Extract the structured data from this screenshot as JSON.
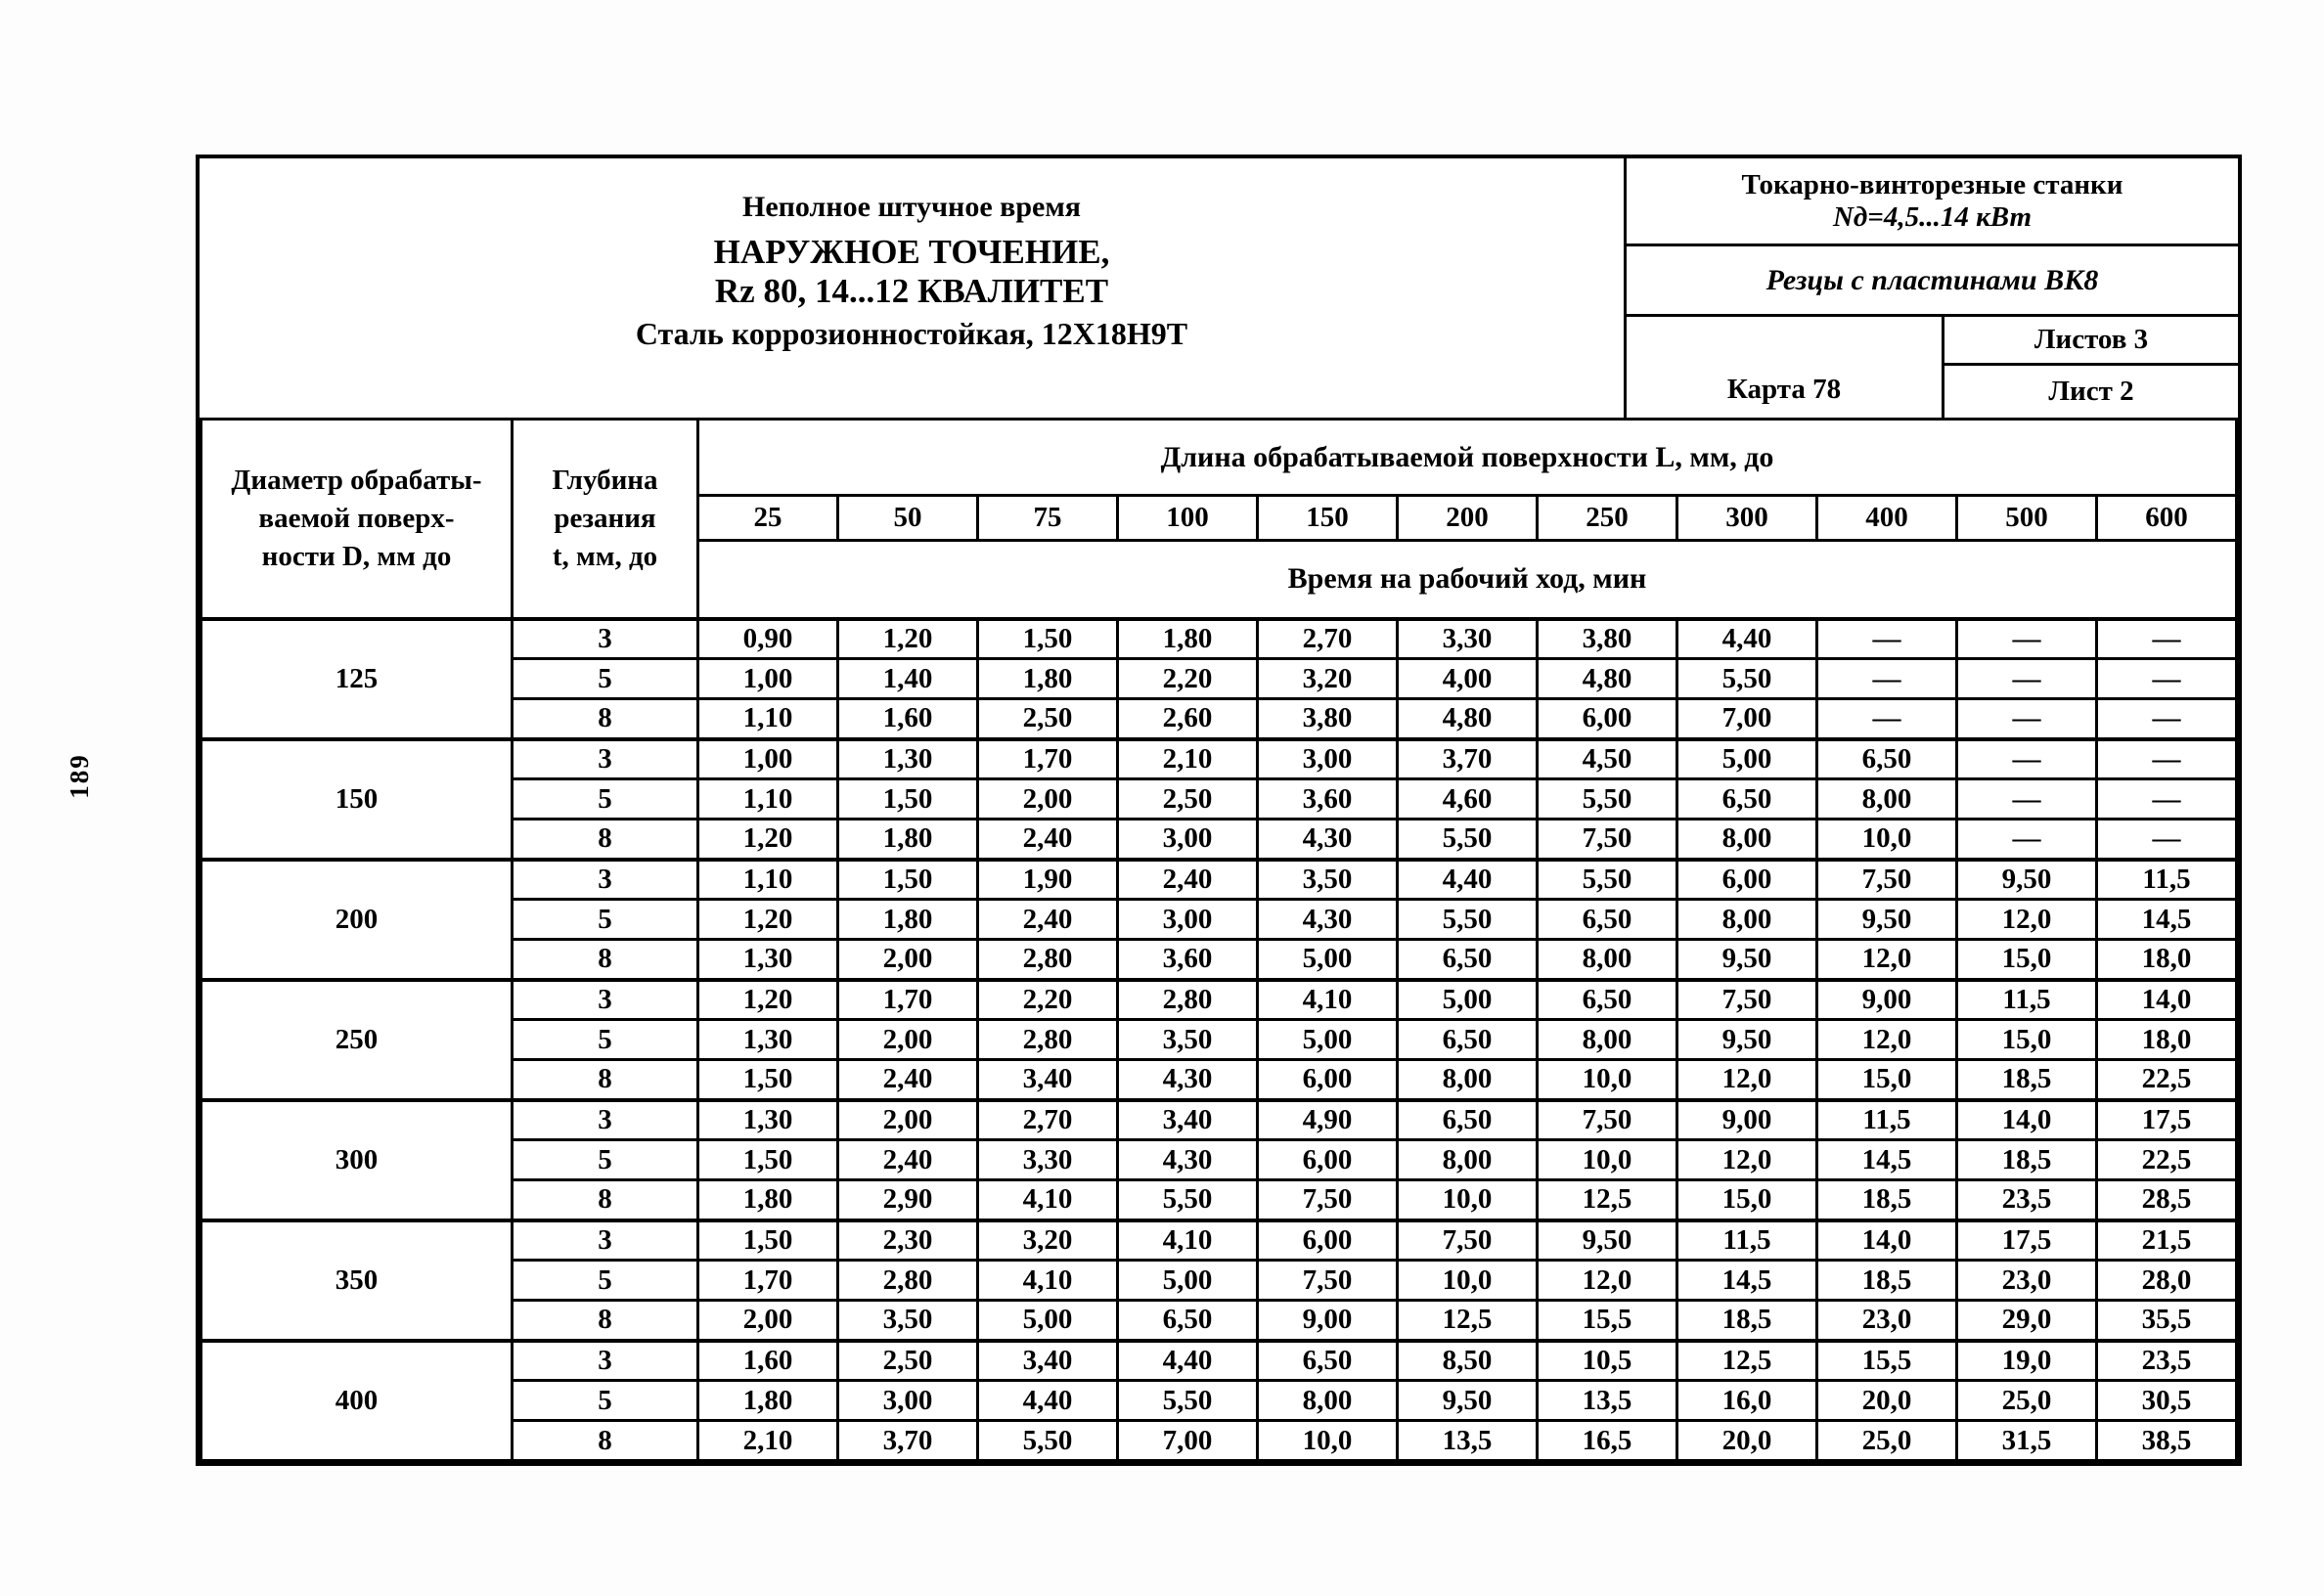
{
  "page_number": "189",
  "header": {
    "subtitle": "Неполное штучное время",
    "title": "НАРУЖНОЕ ТОЧЕНИЕ,",
    "title2": "Rz 80, 14...12 КВАЛИТЕТ",
    "material": "Сталь коррозионностойкая, 12Х18Н9Т",
    "machine": "Токарно-винторезные станки",
    "machine_power": "Nд=4,5...14 кВт",
    "tool": "Резцы с пластинами ВК8",
    "sheets_label": "Листов 3",
    "card_label": "Карта 78",
    "sheet_label": "Лист 2"
  },
  "table": {
    "diameter_header": "Диаметр обрабаты-\nваемой поверх-\nности D, мм до",
    "depth_header": "Глубина\nрезания\nt, мм, до",
    "length_header": "Длина обрабатываемой поверхности L, мм, до",
    "length_columns": [
      "25",
      "50",
      "75",
      "100",
      "150",
      "200",
      "250",
      "300",
      "400",
      "500",
      "600"
    ],
    "time_header": "Время на рабочий ход, мин",
    "groups": [
      {
        "diameter": "125",
        "rows": [
          {
            "depth": "3",
            "values": [
              "0,90",
              "1,20",
              "1,50",
              "1,80",
              "2,70",
              "3,30",
              "3,80",
              "4,40",
              "—",
              "—",
              "—"
            ]
          },
          {
            "depth": "5",
            "values": [
              "1,00",
              "1,40",
              "1,80",
              "2,20",
              "3,20",
              "4,00",
              "4,80",
              "5,50",
              "—",
              "—",
              "—"
            ]
          },
          {
            "depth": "8",
            "values": [
              "1,10",
              "1,60",
              "2,50",
              "2,60",
              "3,80",
              "4,80",
              "6,00",
              "7,00",
              "—",
              "—",
              "—"
            ]
          }
        ]
      },
      {
        "diameter": "150",
        "rows": [
          {
            "depth": "3",
            "values": [
              "1,00",
              "1,30",
              "1,70",
              "2,10",
              "3,00",
              "3,70",
              "4,50",
              "5,00",
              "6,50",
              "—",
              "—"
            ]
          },
          {
            "depth": "5",
            "values": [
              "1,10",
              "1,50",
              "2,00",
              "2,50",
              "3,60",
              "4,60",
              "5,50",
              "6,50",
              "8,00",
              "—",
              "—"
            ]
          },
          {
            "depth": "8",
            "values": [
              "1,20",
              "1,80",
              "2,40",
              "3,00",
              "4,30",
              "5,50",
              "7,50",
              "8,00",
              "10,0",
              "—",
              "—"
            ]
          }
        ]
      },
      {
        "diameter": "200",
        "rows": [
          {
            "depth": "3",
            "values": [
              "1,10",
              "1,50",
              "1,90",
              "2,40",
              "3,50",
              "4,40",
              "5,50",
              "6,00",
              "7,50",
              "9,50",
              "11,5"
            ]
          },
          {
            "depth": "5",
            "values": [
              "1,20",
              "1,80",
              "2,40",
              "3,00",
              "4,30",
              "5,50",
              "6,50",
              "8,00",
              "9,50",
              "12,0",
              "14,5"
            ]
          },
          {
            "depth": "8",
            "values": [
              "1,30",
              "2,00",
              "2,80",
              "3,60",
              "5,00",
              "6,50",
              "8,00",
              "9,50",
              "12,0",
              "15,0",
              "18,0"
            ]
          }
        ]
      },
      {
        "diameter": "250",
        "rows": [
          {
            "depth": "3",
            "values": [
              "1,20",
              "1,70",
              "2,20",
              "2,80",
              "4,10",
              "5,00",
              "6,50",
              "7,50",
              "9,00",
              "11,5",
              "14,0"
            ]
          },
          {
            "depth": "5",
            "values": [
              "1,30",
              "2,00",
              "2,80",
              "3,50",
              "5,00",
              "6,50",
              "8,00",
              "9,50",
              "12,0",
              "15,0",
              "18,0"
            ]
          },
          {
            "depth": "8",
            "values": [
              "1,50",
              "2,40",
              "3,40",
              "4,30",
              "6,00",
              "8,00",
              "10,0",
              "12,0",
              "15,0",
              "18,5",
              "22,5"
            ]
          }
        ]
      },
      {
        "diameter": "300",
        "rows": [
          {
            "depth": "3",
            "values": [
              "1,30",
              "2,00",
              "2,70",
              "3,40",
              "4,90",
              "6,50",
              "7,50",
              "9,00",
              "11,5",
              "14,0",
              "17,5"
            ]
          },
          {
            "depth": "5",
            "values": [
              "1,50",
              "2,40",
              "3,30",
              "4,30",
              "6,00",
              "8,00",
              "10,0",
              "12,0",
              "14,5",
              "18,5",
              "22,5"
            ]
          },
          {
            "depth": "8",
            "values": [
              "1,80",
              "2,90",
              "4,10",
              "5,50",
              "7,50",
              "10,0",
              "12,5",
              "15,0",
              "18,5",
              "23,5",
              "28,5"
            ]
          }
        ]
      },
      {
        "diameter": "350",
        "rows": [
          {
            "depth": "3",
            "values": [
              "1,50",
              "2,30",
              "3,20",
              "4,10",
              "6,00",
              "7,50",
              "9,50",
              "11,5",
              "14,0",
              "17,5",
              "21,5"
            ]
          },
          {
            "depth": "5",
            "values": [
              "1,70",
              "2,80",
              "4,10",
              "5,00",
              "7,50",
              "10,0",
              "12,0",
              "14,5",
              "18,5",
              "23,0",
              "28,0"
            ]
          },
          {
            "depth": "8",
            "values": [
              "2,00",
              "3,50",
              "5,00",
              "6,50",
              "9,00",
              "12,5",
              "15,5",
              "18,5",
              "23,0",
              "29,0",
              "35,5"
            ]
          }
        ]
      },
      {
        "diameter": "400",
        "rows": [
          {
            "depth": "3",
            "values": [
              "1,60",
              "2,50",
              "3,40",
              "4,40",
              "6,50",
              "8,50",
              "10,5",
              "12,5",
              "15,5",
              "19,0",
              "23,5"
            ]
          },
          {
            "depth": "5",
            "values": [
              "1,80",
              "3,00",
              "4,40",
              "5,50",
              "8,00",
              "9,50",
              "13,5",
              "16,0",
              "20,0",
              "25,0",
              "30,5"
            ]
          },
          {
            "depth": "8",
            "values": [
              "2,10",
              "3,70",
              "5,50",
              "7,00",
              "10,0",
              "13,5",
              "16,5",
              "20,0",
              "25,0",
              "31,5",
              "38,5"
            ]
          }
        ]
      }
    ]
  }
}
